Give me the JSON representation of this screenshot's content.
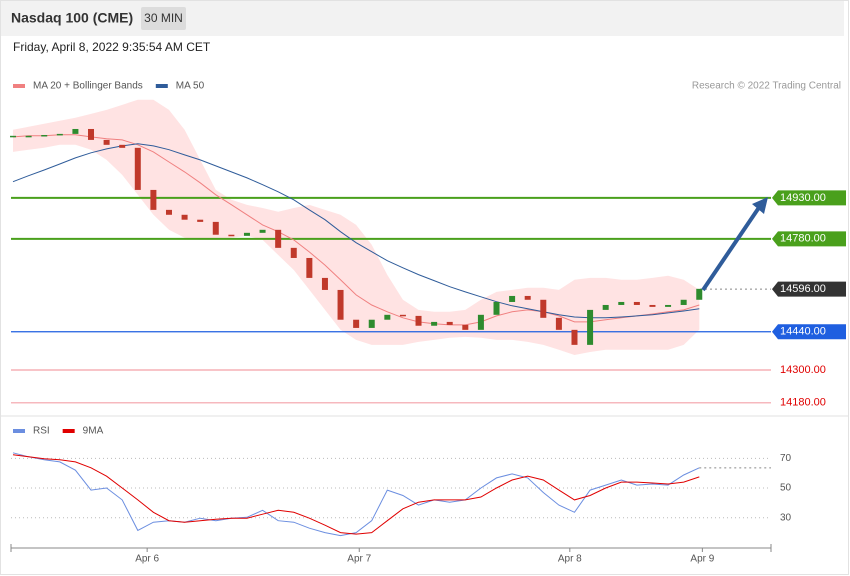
{
  "header": {
    "title": "Nasdaq 100 (CME)",
    "interval": "30 MIN",
    "subtitle": "Friday, April 8, 2022 9:35:54 AM CET",
    "credit": "Research © 2022 Trading Central"
  },
  "chart_data": [
    {
      "type": "line",
      "x": [
        0,
        1,
        2,
        3,
        4,
        5,
        6,
        7,
        8,
        9,
        10,
        11,
        12,
        13,
        14,
        15,
        16,
        17,
        18,
        19,
        20,
        21,
        22,
        23,
        24,
        25,
        26,
        27,
        28,
        29,
        30,
        31,
        32,
        33,
        34,
        35,
        36,
        37,
        38,
        39,
        40,
        41,
        42,
        43,
        44
      ],
      "xlim": [
        -0.13,
        48.6
      ],
      "xticks": [
        {
          "value": 8.6,
          "label": "Apr 6"
        },
        {
          "value": 22.2,
          "label": "Apr 7"
        },
        {
          "value": 35.7,
          "label": "Apr 8"
        },
        {
          "value": 44.2,
          "label": "Apr 9"
        }
      ],
      "ylim": [
        14150,
        15310
      ],
      "price": {
        "up_color": "#2e8b2e",
        "down_color": "#c0392b",
        "values": [
          15157,
          15157,
          15160,
          15164,
          15182,
          15142,
          15124,
          15113,
          14959,
          14886,
          14868,
          14850,
          14842,
          14795,
          14791,
          14802,
          14813,
          14747,
          14710,
          14637,
          14593,
          14484,
          14454,
          14484,
          14502,
          14498,
          14462,
          14476,
          14465,
          14447,
          14502,
          14549,
          14571,
          14557,
          14491,
          14447,
          14392,
          14520,
          14538,
          14549,
          14538,
          14531,
          14538,
          14557,
          14597
        ]
      },
      "series": [
        {
          "name": "MA 20 + Bollinger Bands",
          "color": "#f08080",
          "values": [
            15153,
            15157,
            15157,
            15161,
            15161,
            15153,
            15146,
            15142,
            15124,
            15098,
            15061,
            15025,
            14985,
            14941,
            14905,
            14868,
            14831,
            14806,
            14776,
            14732,
            14684,
            14630,
            14575,
            14538,
            14513,
            14491,
            14476,
            14469,
            14465,
            14465,
            14476,
            14498,
            14513,
            14520,
            14513,
            14498,
            14476,
            14476,
            14484,
            14491,
            14498,
            14505,
            14513,
            14520,
            14538
          ]
        },
        {
          "name": "MA 50",
          "color": "#2f5c9a",
          "values": [
            14989,
            15011,
            15032,
            15054,
            15076,
            15095,
            15109,
            15120,
            15128,
            15120,
            15106,
            15087,
            15069,
            15047,
            15025,
            15003,
            14978,
            14952,
            14923,
            14886,
            14850,
            14806,
            14766,
            14733,
            14700,
            14674,
            14649,
            14627,
            14605,
            14586,
            14568,
            14550,
            14535,
            14524,
            14513,
            14502,
            14494,
            14491,
            14491,
            14494,
            14498,
            14502,
            14509,
            14516,
            14524
          ]
        }
      ],
      "bollinger": {
        "color": "#ffe3e3",
        "upper": [
          15179,
          15190,
          15201,
          15212,
          15223,
          15237,
          15252,
          15270,
          15289,
          15289,
          15252,
          15179,
          15069,
          14959,
          14923,
          14904,
          14893,
          14879,
          14893,
          14904,
          14886,
          14868,
          14831,
          14758,
          14648,
          14557,
          14520,
          14513,
          14513,
          14520,
          14557,
          14586,
          14593,
          14601,
          14601,
          14593,
          14630,
          14637,
          14637,
          14630,
          14630,
          14637,
          14645,
          14630,
          14593
        ],
        "lower": [
          15098,
          15106,
          15113,
          15124,
          15124,
          15106,
          15069,
          15014,
          14941,
          14868,
          14813,
          14784,
          14776,
          14776,
          14784,
          14791,
          14776,
          14721,
          14666,
          14593,
          14520,
          14447,
          14410,
          14392,
          14392,
          14392,
          14403,
          14410,
          14418,
          14421,
          14418,
          14410,
          14410,
          14403,
          14392,
          14374,
          14355,
          14366,
          14374,
          14374,
          14374,
          14374,
          14374,
          14392,
          14447
        ]
      },
      "levels": [
        {
          "value": 14930,
          "label": "14930.00",
          "color": "#4aa01c",
          "style": "box"
        },
        {
          "value": 14780,
          "label": "14780.00",
          "color": "#4aa01c",
          "style": "box"
        },
        {
          "value": 14596,
          "label": "14596.00",
          "color": "#333333",
          "style": "last"
        },
        {
          "value": 14440,
          "label": "14440.00",
          "color": "#1f5fe0",
          "style": "box"
        },
        {
          "value": 14300,
          "label": "14300.00",
          "color": "#f4a0a8",
          "style": "text"
        },
        {
          "value": 14180,
          "label": "14180.00",
          "color": "#f4a0a8",
          "style": "text"
        }
      ]
    },
    {
      "type": "line",
      "x": [
        0,
        1,
        2,
        3,
        4,
        5,
        6,
        7,
        8,
        9,
        10,
        11,
        12,
        13,
        14,
        15,
        16,
        17,
        18,
        19,
        20,
        21,
        22,
        23,
        24,
        25,
        26,
        27,
        28,
        29,
        30,
        31,
        32,
        33,
        34,
        35,
        36,
        37,
        38,
        39,
        40,
        41,
        42,
        43,
        44
      ],
      "xlim": [
        -0.13,
        48.6
      ],
      "ylim": [
        11,
        83
      ],
      "yticks": [
        70,
        50,
        30
      ],
      "grid": true,
      "series": [
        {
          "name": "RSI",
          "color": "#6b8ee0",
          "values": [
            73.7,
            71,
            69,
            67.6,
            62,
            48.6,
            50,
            42,
            21.5,
            27,
            28,
            27,
            29.7,
            28,
            29.7,
            30.3,
            35,
            28,
            27,
            23,
            20,
            18,
            20,
            28,
            48.6,
            45,
            38.5,
            42,
            40.5,
            42,
            50,
            56.8,
            59.5,
            56.8,
            47,
            38.5,
            33.7,
            48.6,
            52,
            55.4,
            52,
            52.7,
            52,
            58.8,
            63.6
          ]
        },
        {
          "name": "9MA",
          "color": "#e00000",
          "values": [
            72.4,
            71,
            69.7,
            69,
            67.6,
            63.6,
            58,
            50,
            42,
            33.7,
            28,
            27,
            28,
            29,
            29.7,
            29.7,
            32.4,
            35,
            33.7,
            29.7,
            25,
            20,
            19,
            20,
            28,
            36,
            40.5,
            42,
            42,
            42,
            44,
            50,
            55.4,
            58,
            55.4,
            48.6,
            42,
            45,
            50,
            54,
            54,
            53.4,
            52.7,
            54,
            57.5
          ]
        }
      ]
    }
  ]
}
